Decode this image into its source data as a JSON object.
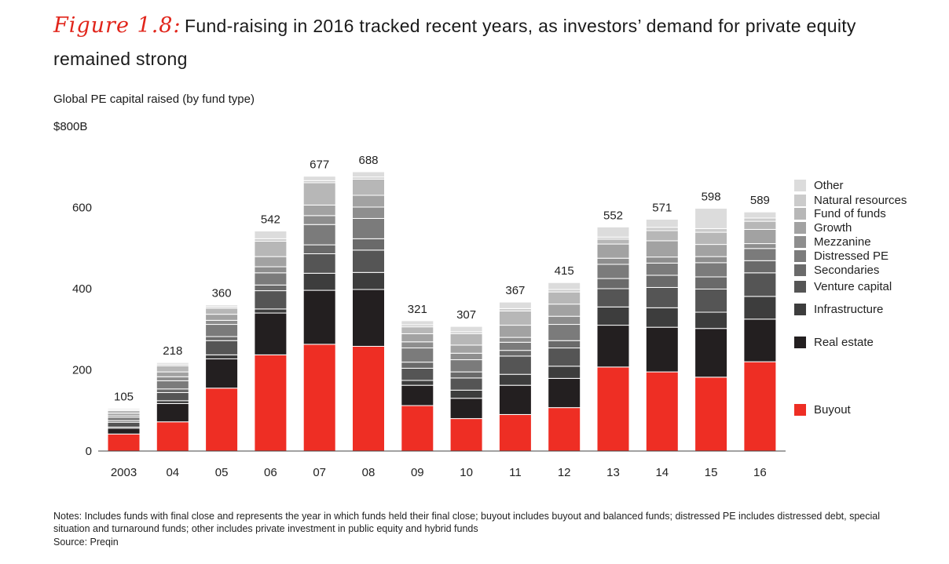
{
  "figure": {
    "label": "Figure 1.8:",
    "title": "Fund-raising in 2016 tracked recent years, as investors’ demand for private equity remained strong"
  },
  "chart_data": {
    "type": "bar",
    "stacked": true,
    "subtitle": "Global PE capital raised (by fund type)",
    "y_top_label": "$800B",
    "ylim": [
      0,
      800
    ],
    "y_ticks": [
      "0",
      "200",
      "400",
      "600"
    ],
    "categories": [
      "2003",
      "04",
      "05",
      "06",
      "07",
      "08",
      "09",
      "10",
      "11",
      "12",
      "13",
      "14",
      "15",
      "16"
    ],
    "totals": [
      105,
      218,
      360,
      542,
      677,
      688,
      321,
      307,
      367,
      415,
      552,
      571,
      598,
      589
    ],
    "series": [
      {
        "name": "Buyout",
        "color": "#ee2e24",
        "values": [
          42,
          72,
          155,
          237,
          263,
          258,
          112,
          80,
          90,
          107,
          207,
          195,
          182,
          220
        ]
      },
      {
        "name": "Real estate",
        "color": "#231f20",
        "values": [
          14,
          45,
          72,
          103,
          133,
          140,
          50,
          50,
          72,
          72,
          103,
          110,
          120,
          105
        ]
      },
      {
        "name": "Infrastructure",
        "color": "#3d3d3d",
        "values": [
          3,
          7,
          10,
          10,
          42,
          42,
          12,
          20,
          27,
          30,
          45,
          48,
          40,
          56
        ]
      },
      {
        "name": "Venture capital",
        "color": "#555555",
        "values": [
          12,
          20,
          35,
          45,
          48,
          55,
          30,
          30,
          45,
          45,
          45,
          50,
          57,
          58
        ]
      },
      {
        "name": "Secondaries",
        "color": "#6a6a6a",
        "values": [
          4,
          9,
          10,
          14,
          22,
          28,
          15,
          15,
          14,
          18,
          25,
          30,
          30,
          30
        ]
      },
      {
        "name": "Distressed PE",
        "color": "#7b7b7b",
        "values": [
          8,
          20,
          30,
          30,
          50,
          50,
          35,
          30,
          20,
          40,
          35,
          30,
          35,
          30
        ]
      },
      {
        "name": "Mezzanine",
        "color": "#8e8e8e",
        "values": [
          4,
          10,
          10,
          15,
          22,
          28,
          15,
          16,
          12,
          20,
          15,
          15,
          15,
          12
        ]
      },
      {
        "name": "Growth",
        "color": "#a2a2a2",
        "values": [
          6,
          12,
          15,
          25,
          26,
          29,
          20,
          20,
          30,
          30,
          35,
          40,
          30,
          35
        ]
      },
      {
        "name": "Fund of funds",
        "color": "#b7b7b7",
        "values": [
          7,
          15,
          15,
          38,
          55,
          40,
          17,
          28,
          35,
          30,
          12,
          25,
          30,
          20
        ]
      },
      {
        "name": "Natural resources",
        "color": "#cbcbcb",
        "values": [
          2,
          4,
          4,
          6,
          5,
          5,
          5,
          5,
          6,
          6,
          5,
          8,
          9,
          8
        ]
      },
      {
        "name": "Other",
        "color": "#dcdcdc",
        "values": [
          3,
          4,
          4,
          19,
          11,
          13,
          10,
          13,
          16,
          17,
          25,
          20,
          50,
          15
        ]
      }
    ]
  },
  "notes": "Notes: Includes funds with final close and represents the year in which funds held their final close; buyout includes buyout and balanced funds; distressed PE includes distressed debt, special situation and turnaround funds; other includes private investment in public equity and hybrid funds",
  "source": "Source: Preqin"
}
